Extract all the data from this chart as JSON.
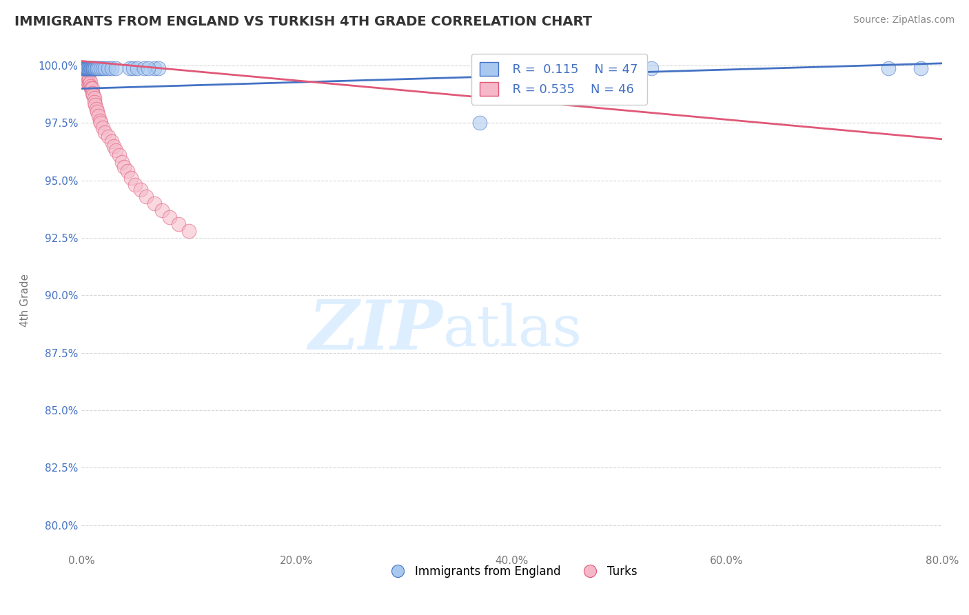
{
  "title": "IMMIGRANTS FROM ENGLAND VS TURKISH 4TH GRADE CORRELATION CHART",
  "source": "Source: ZipAtlas.com",
  "ylabel": "4th Grade",
  "xlim": [
    0.0,
    0.8
  ],
  "ylim": [
    0.788,
    1.008
  ],
  "xtick_labels": [
    "0.0%",
    "20.0%",
    "40.0%",
    "60.0%",
    "80.0%"
  ],
  "xtick_vals": [
    0.0,
    0.2,
    0.4,
    0.6,
    0.8
  ],
  "ytick_labels": [
    "97.5%",
    "100.0%",
    "95.0%",
    "92.5%",
    "80.0%"
  ],
  "ytick_vals": [
    0.975,
    1.0,
    0.95,
    0.925,
    0.8
  ],
  "color_eng": "#a8c8f0",
  "color_turk": "#f5b8c8",
  "trendline_eng_color": "#4472c4",
  "trendline_turk_color": "#e05878",
  "background_color": "#ffffff",
  "watermark_color": "#ddeeff",
  "eng_x": [
    0.001,
    0.002,
    0.002,
    0.003,
    0.003,
    0.004,
    0.004,
    0.004,
    0.005,
    0.005,
    0.005,
    0.006,
    0.006,
    0.007,
    0.007,
    0.007,
    0.008,
    0.008,
    0.009,
    0.009,
    0.01,
    0.01,
    0.011,
    0.011,
    0.012,
    0.012,
    0.013,
    0.014,
    0.015,
    0.016,
    0.018,
    0.02,
    0.022,
    0.025,
    0.028,
    0.032,
    0.068,
    0.072,
    0.37,
    0.53,
    0.045,
    0.048,
    0.052,
    0.058,
    0.062,
    0.75,
    0.78
  ],
  "eng_y": [
    0.999,
    0.999,
    0.999,
    0.999,
    0.999,
    0.999,
    0.999,
    0.999,
    0.999,
    0.999,
    0.999,
    0.999,
    0.999,
    0.999,
    0.999,
    0.999,
    0.999,
    0.999,
    0.999,
    0.999,
    0.999,
    0.999,
    0.999,
    0.999,
    0.999,
    0.999,
    0.999,
    0.999,
    0.999,
    0.999,
    0.999,
    0.999,
    0.999,
    0.999,
    0.999,
    0.999,
    0.999,
    0.999,
    0.975,
    0.999,
    0.999,
    0.999,
    0.999,
    0.999,
    0.999,
    0.999,
    0.999
  ],
  "turk_x": [
    0.001,
    0.002,
    0.002,
    0.003,
    0.003,
    0.004,
    0.004,
    0.005,
    0.005,
    0.006,
    0.006,
    0.007,
    0.007,
    0.008,
    0.008,
    0.009,
    0.01,
    0.01,
    0.011,
    0.012,
    0.012,
    0.013,
    0.014,
    0.015,
    0.016,
    0.017,
    0.018,
    0.02,
    0.022,
    0.025,
    0.028,
    0.03,
    0.032,
    0.035,
    0.038,
    0.04,
    0.043,
    0.046,
    0.05,
    0.055,
    0.06,
    0.068,
    0.075,
    0.082,
    0.09,
    0.1
  ],
  "turk_y": [
    0.999,
    0.998,
    0.997,
    0.998,
    0.996,
    0.997,
    0.995,
    0.996,
    0.994,
    0.995,
    0.993,
    0.994,
    0.992,
    0.993,
    0.991,
    0.99,
    0.99,
    0.988,
    0.987,
    0.986,
    0.984,
    0.983,
    0.981,
    0.98,
    0.978,
    0.976,
    0.975,
    0.973,
    0.971,
    0.969,
    0.967,
    0.965,
    0.963,
    0.961,
    0.958,
    0.956,
    0.954,
    0.951,
    0.948,
    0.946,
    0.943,
    0.94,
    0.937,
    0.934,
    0.931,
    0.928
  ],
  "trendline_eng": [
    0.99,
    1.001
  ],
  "trendline_turk": [
    1.002,
    0.968
  ],
  "legend_R_eng": "R =  0.115",
  "legend_N_eng": "N = 47",
  "legend_R_turk": "R = 0.535",
  "legend_N_turk": "N = 46"
}
